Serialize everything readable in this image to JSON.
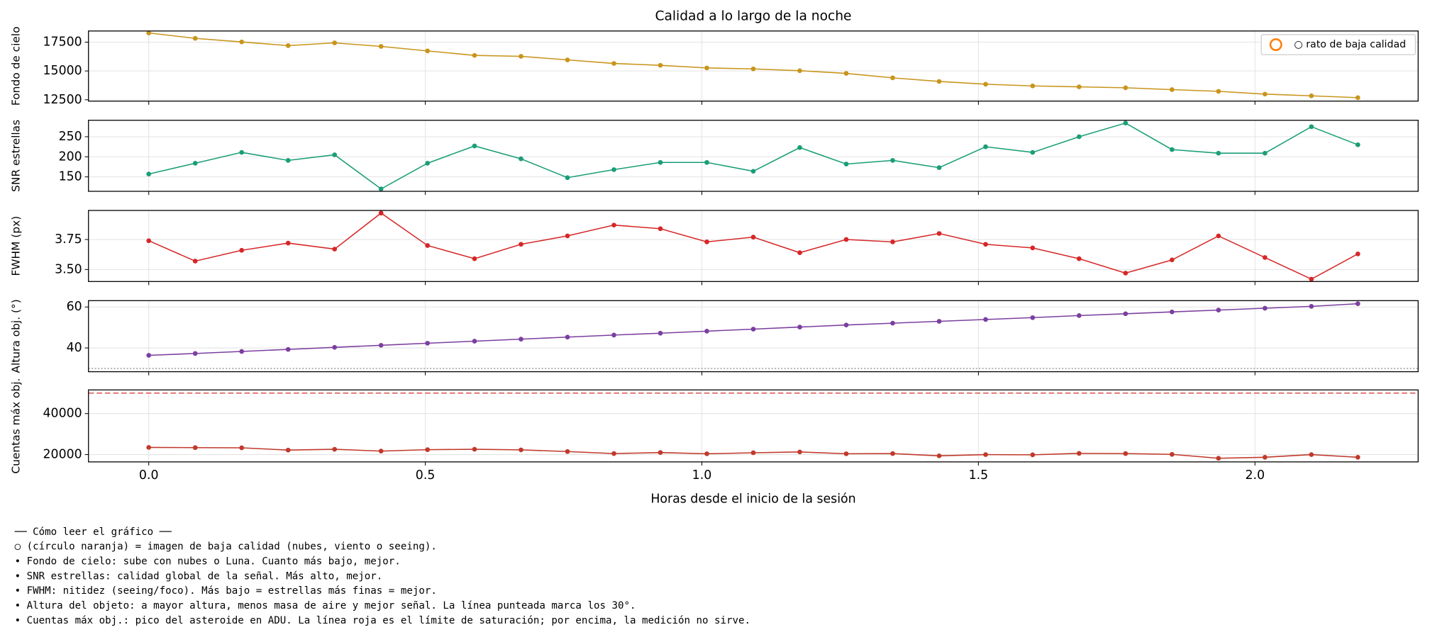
{
  "chart_data": [
    {
      "type": "line",
      "title": "Calidad a lo largo de la noche",
      "ylabel": "Fondo de cielo",
      "color": "#c8951c",
      "x": [
        0,
        0.084,
        0.168,
        0.252,
        0.336,
        0.42,
        0.504,
        0.589,
        0.673,
        0.757,
        0.841,
        0.925,
        1.009,
        1.093,
        1.177,
        1.261,
        1.345,
        1.429,
        1.513,
        1.598,
        1.682,
        1.766,
        1.85,
        1.934,
        2.018,
        2.102,
        2.186
      ],
      "values": [
        18300,
        17830,
        17520,
        17200,
        17440,
        17130,
        16740,
        16350,
        16270,
        15960,
        15650,
        15490,
        15260,
        15180,
        15020,
        14790,
        14400,
        14090,
        13850,
        13700,
        13620,
        13540,
        13380,
        13230,
        12990,
        12840,
        12680
      ],
      "xlim": [
        -0.109,
        2.295
      ],
      "xticks": [
        0,
        0.5,
        1,
        1.5,
        2
      ],
      "ylim": [
        12380,
        18470
      ],
      "yticks": [
        12500,
        15000,
        17500
      ],
      "grid": true,
      "legend": {
        "label": "○ rato de baja calidad",
        "color": "#ff7f0e"
      }
    },
    {
      "type": "line",
      "ylabel": "SNR estrellas",
      "color": "#1a9e77",
      "x": [
        0,
        0.084,
        0.168,
        0.252,
        0.336,
        0.42,
        0.504,
        0.589,
        0.673,
        0.757,
        0.841,
        0.925,
        1.009,
        1.093,
        1.177,
        1.261,
        1.345,
        1.429,
        1.513,
        1.598,
        1.682,
        1.766,
        1.85,
        1.934,
        2.018,
        2.102,
        2.186
      ],
      "values": [
        157,
        184,
        211,
        191,
        205,
        120,
        184,
        227,
        195,
        148,
        168,
        186,
        186,
        164,
        223,
        182,
        191,
        173,
        225,
        211,
        250,
        284,
        218,
        209,
        209,
        275,
        230
      ],
      "xlim": [
        -0.109,
        2.295
      ],
      "xticks": [
        0,
        0.5,
        1,
        1.5,
        2
      ],
      "ylim": [
        114,
        291
      ],
      "yticks": [
        150,
        200,
        250
      ],
      "grid": true
    },
    {
      "type": "line",
      "ylabel": "FWHM (px)",
      "color": "#d62728",
      "x": [
        0,
        0.084,
        0.168,
        0.252,
        0.336,
        0.42,
        0.504,
        0.589,
        0.673,
        0.757,
        0.841,
        0.925,
        1.009,
        1.093,
        1.177,
        1.261,
        1.345,
        1.429,
        1.513,
        1.598,
        1.682,
        1.766,
        1.85,
        1.934,
        2.018,
        2.102,
        2.186
      ],
      "values": [
        3.74,
        3.57,
        3.66,
        3.72,
        3.67,
        3.97,
        3.7,
        3.59,
        3.71,
        3.78,
        3.87,
        3.84,
        3.73,
        3.77,
        3.64,
        3.75,
        3.73,
        3.8,
        3.71,
        3.68,
        3.59,
        3.47,
        3.58,
        3.78,
        3.6,
        3.42,
        3.63
      ],
      "xlim": [
        -0.109,
        2.295
      ],
      "xticks": [
        0,
        0.5,
        1,
        1.5,
        2
      ],
      "ylim": [
        3.4,
        3.992
      ],
      "yticks": [
        {
          "value": 3.5,
          "label": "3.50"
        },
        3.75
      ],
      "grid": true
    },
    {
      "type": "line",
      "ylabel": "Altura obj. (°)",
      "color": "#7b3fa0",
      "x": [
        0,
        0.084,
        0.168,
        0.252,
        0.336,
        0.42,
        0.504,
        0.589,
        0.673,
        0.757,
        0.841,
        0.925,
        1.009,
        1.093,
        1.177,
        1.261,
        1.345,
        1.429,
        1.513,
        1.598,
        1.682,
        1.766,
        1.85,
        1.934,
        2.018,
        2.102,
        2.186
      ],
      "values": [
        36.4,
        37.3,
        38.3,
        39.3,
        40.3,
        41.3,
        42.3,
        43.3,
        44.3,
        45.3,
        46.3,
        47.2,
        48.2,
        49.2,
        50.2,
        51.2,
        52.1,
        53.0,
        53.9,
        54.8,
        55.8,
        56.7,
        57.6,
        58.5,
        59.4,
        60.3,
        61.6
      ],
      "xlim": [
        -0.109,
        2.295
      ],
      "xticks": [
        0,
        0.5,
        1,
        1.5,
        2
      ],
      "ylim": [
        28.4,
        63.1
      ],
      "yticks": [
        40,
        60
      ],
      "grid": true,
      "hline": {
        "value": 30,
        "style": "dotted",
        "color": "#999999"
      }
    },
    {
      "type": "line",
      "ylabel": "Cuentas máx obj.",
      "xlabel": "Horas desde el inicio de la sesión",
      "color": "#c0392b",
      "x": [
        0,
        0.084,
        0.168,
        0.252,
        0.336,
        0.42,
        0.504,
        0.589,
        0.673,
        0.757,
        0.841,
        0.925,
        1.009,
        1.093,
        1.177,
        1.261,
        1.345,
        1.429,
        1.513,
        1.598,
        1.682,
        1.766,
        1.85,
        1.934,
        2.018,
        2.102,
        2.186
      ],
      "values": [
        23500,
        23400,
        23300,
        22200,
        22600,
        21700,
        22400,
        22600,
        22300,
        21500,
        20500,
        21000,
        20400,
        20900,
        21300,
        20400,
        20500,
        19400,
        20000,
        19900,
        20600,
        20500,
        20100,
        18200,
        18700,
        20000,
        18700
      ],
      "xlim": [
        -0.109,
        2.295
      ],
      "xticks": [
        {
          "value": 0,
          "label": "0.0"
        },
        0.5,
        {
          "value": 1,
          "label": "1.0"
        },
        1.5,
        {
          "value": 2,
          "label": "2.0"
        }
      ],
      "ylim": [
        16440,
        51540
      ],
      "yticks": [
        20000,
        40000
      ],
      "grid": true,
      "hline": {
        "value": 50000,
        "style": "dashed",
        "color": "#d9534f"
      }
    }
  ],
  "notes": [
    "── Cómo leer el gráfico ──",
    "○ (círculo naranja) = imagen de baja calidad (nubes, viento o seeing).",
    "• Fondo de cielo: sube con nubes o Luna. Cuanto más bajo, mejor.",
    "• SNR estrellas: calidad global de la señal. Más alto, mejor.",
    "• FWHM: nitidez (seeing/foco). Más bajo = estrellas más finas = mejor.",
    "• Altura del objeto: a mayor altura, menos masa de aire y mejor señal. La línea punteada marca los 30°.",
    "• Cuentas máx obj.: pico del asteroide en ADU. La línea roja es el límite de saturación; por encima, la medición no sirve."
  ]
}
